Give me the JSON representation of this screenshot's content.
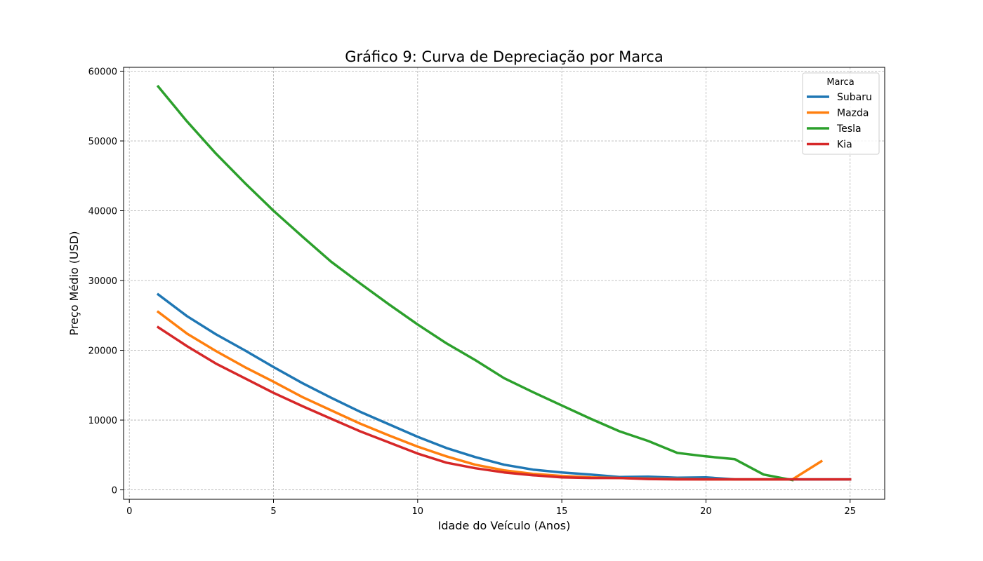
{
  "chart_data": {
    "type": "line",
    "title": "Gráfico 9: Curva de Depreciação por Marca",
    "xlabel": "Idade do Veículo (Anos)",
    "ylabel": "Preço Médio (USD)",
    "xlim": [
      -0.2,
      26.2
    ],
    "ylim": [
      -1350,
      60550
    ],
    "xticks": [
      0,
      5,
      10,
      15,
      20,
      25
    ],
    "yticks": [
      0,
      10000,
      20000,
      30000,
      40000,
      50000,
      60000
    ],
    "grid": true,
    "legend": {
      "title": "Marca",
      "placement": "top-right"
    },
    "series": [
      {
        "name": "Subaru",
        "color": "#1f77b4",
        "x": [
          1,
          2,
          3,
          4,
          5,
          6,
          7,
          8,
          9,
          10,
          11,
          12,
          13,
          14,
          15,
          16,
          17,
          18,
          19,
          20,
          21,
          22,
          23,
          24,
          25
        ],
        "y": [
          28000,
          24900,
          22300,
          20000,
          17600,
          15300,
          13200,
          11200,
          9400,
          7600,
          6000,
          4700,
          3600,
          2900,
          2500,
          2200,
          1850,
          1900,
          1750,
          1800,
          1500,
          1500,
          1500,
          1500,
          1500
        ]
      },
      {
        "name": "Mazda",
        "color": "#ff7f0e",
        "x": [
          1,
          2,
          3,
          4,
          5,
          6,
          7,
          8,
          9,
          10,
          11,
          12,
          13,
          14,
          15,
          16,
          17,
          18,
          19,
          20,
          21,
          22,
          23,
          24
        ],
        "y": [
          25500,
          22400,
          19900,
          17600,
          15500,
          13300,
          11400,
          9500,
          7800,
          6200,
          4800,
          3600,
          2800,
          2300,
          2000,
          1800,
          1700,
          1600,
          1550,
          1500,
          1500,
          1500,
          1500,
          4100
        ]
      },
      {
        "name": "Tesla",
        "color": "#2ca02c",
        "x": [
          1,
          2,
          3,
          4,
          5,
          6,
          7,
          8,
          9,
          10,
          11,
          12,
          13,
          14,
          15,
          16,
          17,
          18,
          19,
          20,
          21,
          22,
          23
        ],
        "y": [
          57800,
          52800,
          48200,
          44000,
          40000,
          36300,
          32700,
          29600,
          26600,
          23700,
          21000,
          18600,
          16000,
          14000,
          12100,
          10200,
          8400,
          7000,
          5300,
          4800,
          4400,
          2200,
          1400
        ]
      },
      {
        "name": "Kia",
        "color": "#d62728",
        "x": [
          1,
          2,
          3,
          4,
          5,
          6,
          7,
          8,
          9,
          10,
          11,
          12,
          13,
          14,
          15,
          16,
          17,
          18,
          19,
          20,
          21,
          22,
          23,
          24,
          25
        ],
        "y": [
          23300,
          20600,
          18100,
          16000,
          13900,
          12000,
          10200,
          8400,
          6800,
          5200,
          3900,
          3100,
          2500,
          2100,
          1800,
          1700,
          1700,
          1550,
          1500,
          1500,
          1500,
          1500,
          1500,
          1500,
          1500
        ]
      }
    ]
  }
}
